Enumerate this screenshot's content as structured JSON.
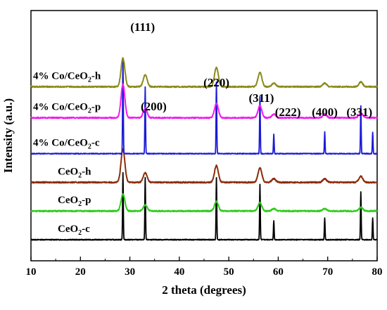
{
  "chart_data": {
    "type": "line",
    "xlabel": "2 theta (degrees)",
    "ylabel": "Intensity (a.u.)",
    "xlim": [
      10,
      80
    ],
    "xticks": [
      10,
      20,
      30,
      40,
      50,
      60,
      70,
      80
    ],
    "yticks_shown": false,
    "grid": false,
    "legend": "none",
    "peak_labels": [
      {
        "text": "(111)",
        "x": 28.6
      },
      {
        "text": "(200)",
        "x": 33.1
      },
      {
        "text": "(220)",
        "x": 47.5
      },
      {
        "text": "(311)",
        "x": 56.3
      },
      {
        "text": "(222)",
        "x": 59.1
      },
      {
        "text": "(400)",
        "x": 69.4
      },
      {
        "text": "(331)",
        "x": 76.7
      }
    ],
    "series": [
      {
        "name": "CeO2-c",
        "label_main": "CeO",
        "label_sub": "2",
        "label_tail": "-c",
        "color": "#000000",
        "baseline": 0,
        "broad": false,
        "peaks": [
          [
            28.6,
            28
          ],
          [
            33.1,
            26
          ],
          [
            47.5,
            26
          ],
          [
            56.3,
            23
          ],
          [
            59.1,
            8
          ],
          [
            69.4,
            9
          ],
          [
            76.7,
            20
          ],
          [
            79.1,
            9
          ]
        ]
      },
      {
        "name": "CeO2-p",
        "label_main": "CeO",
        "label_sub": "2",
        "label_tail": "-p",
        "color": "#2ecc1a",
        "baseline": 12,
        "broad": true,
        "peaks": [
          [
            28.6,
            7
          ],
          [
            33.1,
            2.5
          ],
          [
            47.5,
            4
          ],
          [
            56.3,
            3.5
          ],
          [
            59.1,
            1
          ],
          [
            69.4,
            1
          ],
          [
            76.7,
            1.5
          ]
        ]
      },
      {
        "name": "CeO2-h",
        "label_main": "CeO",
        "label_sub": "2",
        "label_tail": "-h",
        "color": "#8b2c0a",
        "baseline": 24,
        "broad": true,
        "peaks": [
          [
            28.6,
            14
          ],
          [
            33.1,
            4
          ],
          [
            47.5,
            7
          ],
          [
            56.3,
            6
          ],
          [
            59.1,
            1.5
          ],
          [
            69.4,
            1.5
          ],
          [
            76.7,
            2.5
          ]
        ]
      },
      {
        "name": "4% Co/CeO2-c",
        "label_main": "4% Co/CeO",
        "label_sub": "2",
        "label_tail": "-c",
        "color": "#1a1ad8",
        "baseline": 36,
        "broad": false,
        "peaks": [
          [
            28.6,
            40
          ],
          [
            33.1,
            28
          ],
          [
            47.5,
            30
          ],
          [
            56.3,
            24
          ],
          [
            59.1,
            8
          ],
          [
            69.4,
            9
          ],
          [
            76.7,
            20
          ],
          [
            79.1,
            9
          ]
        ]
      },
      {
        "name": "4% Co/CeO2-p",
        "label_main": "4% Co/CeO",
        "label_sub": "2",
        "label_tail": "-p",
        "color": "#f01ef0",
        "baseline": 51,
        "broad": true,
        "peaks": [
          [
            28.6,
            14
          ],
          [
            33.1,
            4
          ],
          [
            47.5,
            6
          ],
          [
            56.3,
            5
          ],
          [
            59.1,
            1.5
          ],
          [
            69.4,
            1.5
          ],
          [
            76.7,
            2
          ]
        ]
      },
      {
        "name": "4% Co/CeO2-h",
        "label_main": "4% Co/CeO",
        "label_sub": "2",
        "label_tail": "-h",
        "color": "#8b8b1a",
        "baseline": 64,
        "broad": true,
        "peaks": [
          [
            28.6,
            12
          ],
          [
            33.1,
            5
          ],
          [
            47.5,
            8
          ],
          [
            56.3,
            6
          ],
          [
            59.1,
            1.5
          ],
          [
            69.4,
            1.5
          ],
          [
            76.7,
            2
          ]
        ]
      }
    ]
  }
}
